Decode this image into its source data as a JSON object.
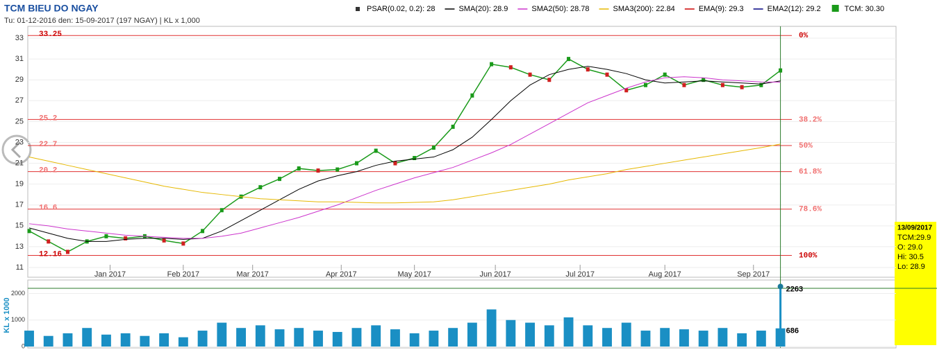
{
  "chart_data": {
    "type": "stock",
    "title": "TCM BIEU DO NGAY",
    "subtitle": "Tu: 01-12-2016 den: 15-09-2017 (197 NGAY) | KL x 1,000",
    "legend": [
      {
        "name": "PSAR(0.02, 0.2): 28",
        "color": "#333333"
      },
      {
        "name": "SMA(20): 28.9",
        "color": "#000000"
      },
      {
        "name": "SMA2(50): 28.78",
        "color": "#cc33cc"
      },
      {
        "name": "SMA3(200): 22.84",
        "color": "#e6b800"
      },
      {
        "name": "EMA(9): 29.3",
        "color": "#cc0000"
      },
      {
        "name": "EMA2(12): 29.2",
        "color": "#000080"
      },
      {
        "name": "TCM: 30.30",
        "color": "#1a9a1a"
      }
    ],
    "x": [
      0,
      5,
      10,
      15,
      20,
      25,
      30,
      35,
      40,
      45,
      50,
      55,
      60,
      65,
      70,
      75,
      80,
      85,
      90,
      95,
      100,
      105,
      110,
      115,
      120,
      125,
      130,
      135,
      140,
      145,
      150,
      155,
      160,
      165,
      170,
      175,
      180,
      185,
      190,
      195
    ],
    "xlim": [
      0,
      225
    ],
    "xticks": [
      {
        "value": 21,
        "label": "Jan 2017"
      },
      {
        "value": 40,
        "label": "Feb 2017"
      },
      {
        "value": 58,
        "label": "Mar 2017"
      },
      {
        "value": 81,
        "label": "Apr 2017"
      },
      {
        "value": 100,
        "label": "May 2017"
      },
      {
        "value": 121,
        "label": "Jun 2017"
      },
      {
        "value": 143,
        "label": "Jul 2017"
      },
      {
        "value": 165,
        "label": "Aug 2017"
      },
      {
        "value": 188,
        "label": "Sep 2017"
      }
    ],
    "ylim": [
      11,
      33.6
    ],
    "yticks": [
      11,
      13,
      15,
      17,
      19,
      21,
      23,
      25,
      27,
      29,
      31,
      33
    ],
    "series": [
      {
        "name": "TCM",
        "color": "#1a9a1a",
        "values": [
          14.5,
          13.5,
          12.5,
          13.5,
          14.0,
          13.8,
          14.0,
          13.6,
          13.3,
          14.5,
          16.5,
          17.8,
          18.7,
          19.5,
          20.5,
          20.3,
          20.4,
          21.0,
          22.2,
          21.0,
          21.5,
          22.5,
          24.5,
          27.5,
          30.5,
          30.2,
          29.5,
          29.0,
          31.0,
          30.0,
          29.5,
          28.0,
          28.5,
          29.5,
          28.5,
          29.0,
          28.5,
          28.3,
          28.5,
          29.9
        ]
      },
      {
        "name": "SMA(20)",
        "color": "#000000",
        "values": [
          14.8,
          14.3,
          13.8,
          13.5,
          13.5,
          13.7,
          13.8,
          13.8,
          13.7,
          13.8,
          14.5,
          15.5,
          16.5,
          17.5,
          18.5,
          19.3,
          19.8,
          20.2,
          20.8,
          21.2,
          21.4,
          21.6,
          22.3,
          23.5,
          25.2,
          27.0,
          28.5,
          29.5,
          30.0,
          30.3,
          30.0,
          29.6,
          29.0,
          28.7,
          28.8,
          28.9,
          28.8,
          28.7,
          28.6,
          28.9
        ]
      },
      {
        "name": "SMA2(50)",
        "color": "#cc33cc",
        "values": [
          15.2,
          15.0,
          14.7,
          14.5,
          14.3,
          14.1,
          14.0,
          13.9,
          13.8,
          13.8,
          14.0,
          14.3,
          14.8,
          15.3,
          15.8,
          16.4,
          17.0,
          17.7,
          18.4,
          19.0,
          19.6,
          20.1,
          20.6,
          21.3,
          22.0,
          22.8,
          23.8,
          24.8,
          25.8,
          26.8,
          27.5,
          28.2,
          28.8,
          29.2,
          29.3,
          29.2,
          29.0,
          28.9,
          28.8,
          28.78
        ]
      },
      {
        "name": "SMA3(200)",
        "color": "#e6b800",
        "values": [
          21.6,
          21.2,
          20.8,
          20.4,
          20.0,
          19.6,
          19.2,
          18.8,
          18.5,
          18.2,
          18.0,
          17.8,
          17.6,
          17.5,
          17.4,
          17.3,
          17.3,
          17.25,
          17.2,
          17.2,
          17.25,
          17.3,
          17.5,
          17.8,
          18.1,
          18.4,
          18.7,
          19.0,
          19.4,
          19.7,
          20.0,
          20.4,
          20.7,
          21.0,
          21.3,
          21.6,
          21.9,
          22.2,
          22.5,
          22.84
        ]
      }
    ],
    "fibonacci": [
      {
        "label": "0%",
        "price": 33.25
      },
      {
        "label": "38.2%",
        "price": 25.2
      },
      {
        "label": "50%",
        "price": 22.7
      },
      {
        "label": "61.8%",
        "price": 20.2
      },
      {
        "label": "78.6%",
        "price": 16.6
      },
      {
        "label": "100%",
        "price": 12.16
      }
    ],
    "volume": {
      "label": "KL x 1000",
      "color": "#1a8fc4",
      "values": [
        600,
        400,
        500,
        700,
        450,
        500,
        400,
        500,
        350,
        600,
        900,
        700,
        800,
        650,
        700,
        600,
        550,
        700,
        800,
        650,
        500,
        600,
        700,
        900,
        1400,
        1000,
        900,
        800,
        1100,
        800,
        700,
        900,
        600,
        700,
        650,
        600,
        700,
        500,
        600,
        686
      ],
      "ylim": [
        0,
        2300
      ],
      "yticks": [
        0,
        1000,
        2000
      ],
      "markers": [
        2263,
        686
      ]
    },
    "tooltip": [
      "13/09/2017",
      "TCM:29.9",
      "O: 29.0",
      "Hi: 30.5",
      "Lo: 28.9"
    ]
  }
}
